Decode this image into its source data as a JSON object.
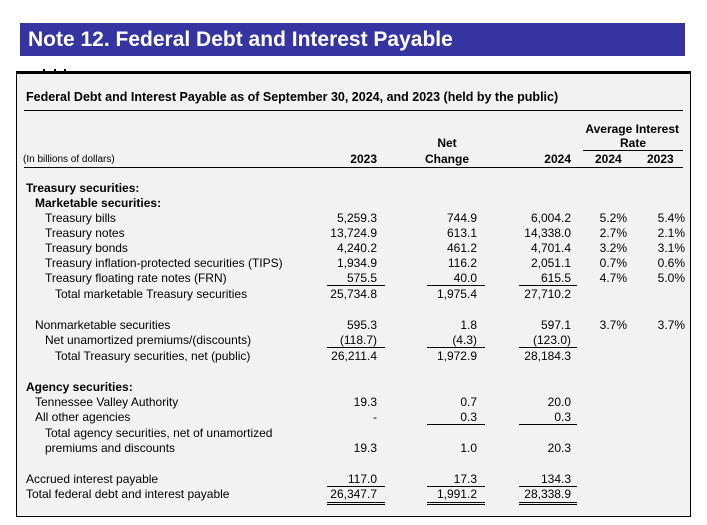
{
  "header": {
    "title": "Note 12. Federal Debt and Interest Payable"
  },
  "table": {
    "title": "Federal Debt and Interest Payable as of September 30, 2024, and 2023 (held by the public)",
    "units": "(In billions of dollars)",
    "columns": {
      "y2023": "2023",
      "net_change_line1": "Net",
      "net_change_line2": "Change",
      "y2024": "2024",
      "avg_rate_line1": "Average Interest",
      "avg_rate_line2": "Rate",
      "rate_2024": "2024",
      "rate_2023": "2023"
    },
    "sections": {
      "treasury": "Treasury securities:",
      "marketable": "Marketable securities:",
      "agency": "Agency securities:"
    },
    "rows": {
      "bills": {
        "label": "Treasury bills",
        "y2023": "5,259.3",
        "change": "744.9",
        "y2024": "6,004.2",
        "r2024": "5.2%",
        "r2023": "5.4%"
      },
      "notes": {
        "label": "Treasury notes",
        "y2023": "13,724.9",
        "change": "613.1",
        "y2024": "14,338.0",
        "r2024": "2.7%",
        "r2023": "2.1%"
      },
      "bonds": {
        "label": "Treasury bonds",
        "y2023": "4,240.2",
        "change": "461.2",
        "y2024": "4,701.4",
        "r2024": "3.2%",
        "r2023": "3.1%"
      },
      "tips": {
        "label": "Treasury inflation-protected securities (TIPS)",
        "y2023": "1,934.9",
        "change": "116.2",
        "y2024": "2,051.1",
        "r2024": "0.7%",
        "r2023": "0.6%"
      },
      "frn": {
        "label": "Treasury floating rate notes (FRN)",
        "y2023": "575.5",
        "change": "40.0",
        "y2024": "615.5",
        "r2024": "4.7%",
        "r2023": "5.0%"
      },
      "total_marketable": {
        "label": "Total marketable Treasury securities",
        "y2023": "25,734.8",
        "change": "1,975.4",
        "y2024": "27,710.2"
      },
      "nonmarketable": {
        "label": "Nonmarketable securities",
        "y2023": "595.3",
        "change": "1.8",
        "y2024": "597.1",
        "r2024": "3.7%",
        "r2023": "3.7%"
      },
      "premiums": {
        "label": "Net unamortized premiums/(discounts)",
        "y2023": "(118.7)",
        "change": "(4.3)",
        "y2024": "(123.0)"
      },
      "total_treasury": {
        "label": "Total Treasury securities, net (public)",
        "y2023": "26,211.4",
        "change": "1,972.9",
        "y2024": "28,184.3"
      },
      "tva": {
        "label": "Tennessee Valley Authority",
        "y2023": "19.3",
        "change": "0.7",
        "y2024": "20.0"
      },
      "other_agencies": {
        "label": "All other agencies",
        "y2023": "-",
        "change": "0.3",
        "y2024": "0.3"
      },
      "total_agency": {
        "label_line1": "Total agency securities, net of unamortized",
        "label_line2": "premiums and discounts",
        "y2023": "19.3",
        "change": "1.0",
        "y2024": "20.3"
      },
      "accrued": {
        "label": "Accrued interest payable",
        "y2023": "117.0",
        "change": "17.3",
        "y2024": "134.3"
      },
      "grand_total": {
        "label": "Total federal debt and interest payable",
        "y2023": "26,347.7",
        "change": "1,991.2",
        "y2024": "28,338.9"
      }
    }
  }
}
